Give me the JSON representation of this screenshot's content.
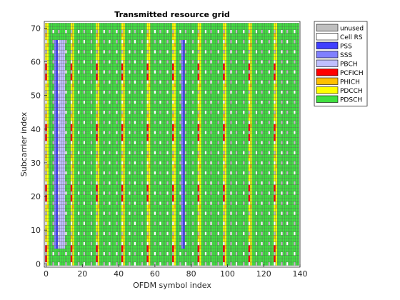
{
  "chart_data": {
    "type": "heatmap",
    "title": "Transmitted resource grid",
    "xlabel": "OFDM symbol index",
    "ylabel": "Subcarrier index",
    "xlim": [
      -1,
      140
    ],
    "ylim": [
      -1,
      72
    ],
    "xticks": [
      "0",
      "20",
      "40",
      "60",
      "80",
      "100",
      "120",
      "140"
    ],
    "yticks": [
      "0",
      "10",
      "20",
      "30",
      "40",
      "50",
      "60",
      "70"
    ],
    "grid_size": {
      "symbols": 140,
      "subcarriers": 72
    },
    "legend_position": "outside-top-right",
    "categories": [
      {
        "name": "unused",
        "color": "#bfbfbf"
      },
      {
        "name": "Cell RS",
        "color": "#ffffff"
      },
      {
        "name": "PSS",
        "color": "#3f3fff"
      },
      {
        "name": "SSS",
        "color": "#8080ff"
      },
      {
        "name": "PBCH",
        "color": "#bfbfff"
      },
      {
        "name": "PCFICH",
        "color": "#ff0000"
      },
      {
        "name": "PHICH",
        "color": "#ffbf00"
      },
      {
        "name": "PDCCH",
        "color": "#ffff00"
      },
      {
        "name": "PDSCH",
        "color": "#40e040"
      }
    ],
    "structure": {
      "control_symbols_per_subframe": [
        0,
        1
      ],
      "symbols_per_subframe": 14,
      "cell_rs_symbols": [
        0,
        4,
        7,
        11
      ],
      "pss_symbols": [
        6,
        76
      ],
      "sss_symbols": [
        5,
        75
      ],
      "pbch_symbols": [
        7,
        8,
        9,
        10
      ],
      "sync_subcarrier_range": [
        5,
        66
      ],
      "pcfich_subframe_start_symbols": [
        0,
        14,
        28,
        42,
        56,
        70,
        84,
        98,
        112,
        126
      ]
    }
  }
}
